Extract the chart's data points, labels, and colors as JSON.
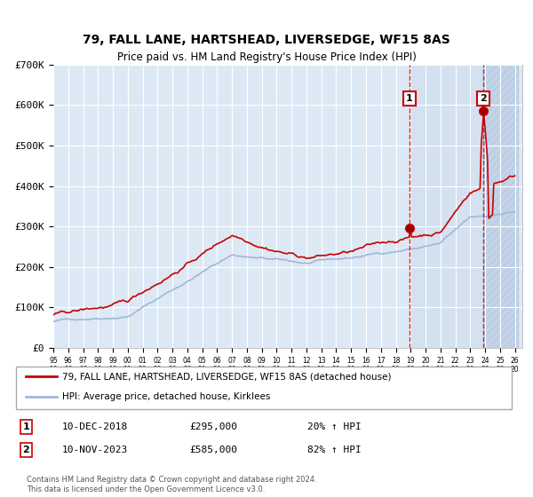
{
  "title": "79, FALL LANE, HARTSHEAD, LIVERSEDGE, WF15 8AS",
  "subtitle": "Price paid vs. HM Land Registry's House Price Index (HPI)",
  "x_start_year": 1995,
  "x_end_year": 2026,
  "y_min": 0,
  "y_max": 700000,
  "y_ticks": [
    0,
    100000,
    200000,
    300000,
    400000,
    500000,
    600000,
    700000
  ],
  "y_tick_labels": [
    "£0",
    "£100K",
    "£200K",
    "£300K",
    "£400K",
    "£500K",
    "£600K",
    "£700K"
  ],
  "sale1_year": 2018.92,
  "sale1_price": 295000,
  "sale1_label": "1",
  "sale1_date": "10-DEC-2018",
  "sale1_pct": "20%",
  "sale2_year": 2023.86,
  "sale2_price": 585000,
  "sale2_label": "2",
  "sale2_date": "10-NOV-2023",
  "sale2_pct": "82%",
  "hpi_color": "#a0b8d8",
  "price_color": "#cc0000",
  "bg_color": "#dce9f5",
  "hatch_color": "#b0c8e0",
  "grid_color": "#ffffff",
  "annotation_box_color": "#cc0000",
  "legend_label_price": "79, FALL LANE, HARTSHEAD, LIVERSEDGE, WF15 8AS (detached house)",
  "legend_label_hpi": "HPI: Average price, detached house, Kirklees",
  "footer": "Contains HM Land Registry data © Crown copyright and database right 2024.\nThis data is licensed under the Open Government Licence v3.0."
}
